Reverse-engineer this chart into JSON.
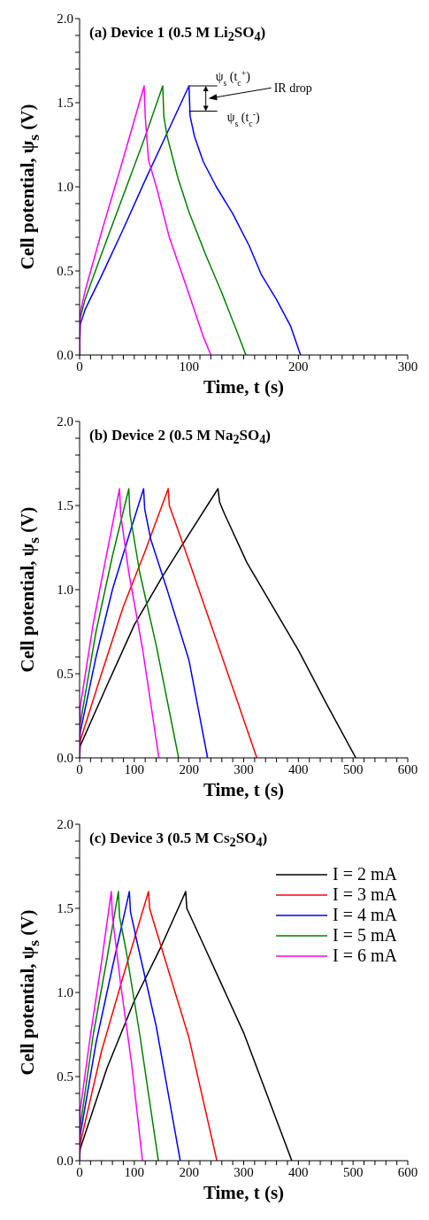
{
  "chart_data": [
    {
      "type": "line",
      "title": "(a) Device 1 (0.5 M Li$_{2}$SO$_{4}$)",
      "xlabel": "Time, t (s)",
      "ylabel": "Cell potential, ψ$_{s}$ (V)",
      "xlim": [
        0,
        300
      ],
      "xticks": [
        {
          "value": 0,
          "label": "0"
        },
        {
          "value": 10,
          "label": null
        },
        {
          "value": 20,
          "label": null
        },
        {
          "value": 30,
          "label": null
        },
        {
          "value": 40,
          "label": null
        },
        {
          "value": 50,
          "label": null
        },
        {
          "value": 60,
          "label": null
        },
        {
          "value": 70,
          "label": null
        },
        {
          "value": 80,
          "label": null
        },
        {
          "value": 90,
          "label": null
        },
        {
          "value": 100,
          "label": "100"
        },
        {
          "value": 110,
          "label": null
        },
        {
          "value": 120,
          "label": null
        },
        {
          "value": 130,
          "label": null
        },
        {
          "value": 140,
          "label": null
        },
        {
          "value": 150,
          "label": null
        },
        {
          "value": 160,
          "label": null
        },
        {
          "value": 170,
          "label": null
        },
        {
          "value": 180,
          "label": null
        },
        {
          "value": 190,
          "label": null
        },
        {
          "value": 200,
          "label": "200"
        },
        {
          "value": 210,
          "label": null
        },
        {
          "value": 220,
          "label": null
        },
        {
          "value": 230,
          "label": null
        },
        {
          "value": 240,
          "label": null
        },
        {
          "value": 250,
          "label": null
        },
        {
          "value": 260,
          "label": null
        },
        {
          "value": 270,
          "label": null
        },
        {
          "value": 280,
          "label": null
        },
        {
          "value": 290,
          "label": null
        },
        {
          "value": 300,
          "label": "300"
        }
      ],
      "ylim": [
        0,
        2
      ],
      "yticks": [
        {
          "value": 0,
          "label": "0.0"
        },
        {
          "value": 0.1,
          "label": null
        },
        {
          "value": 0.2,
          "label": null
        },
        {
          "value": 0.3,
          "label": null
        },
        {
          "value": 0.4,
          "label": null
        },
        {
          "value": 0.5,
          "label": "0.5"
        },
        {
          "value": 0.6,
          "label": null
        },
        {
          "value": 0.7,
          "label": null
        },
        {
          "value": 0.8,
          "label": null
        },
        {
          "value": 0.9,
          "label": null
        },
        {
          "value": 1,
          "label": "1.0"
        },
        {
          "value": 1.1,
          "label": null
        },
        {
          "value": 1.2,
          "label": null
        },
        {
          "value": 1.3,
          "label": null
        },
        {
          "value": 1.4,
          "label": null
        },
        {
          "value": 1.5,
          "label": "1.5"
        },
        {
          "value": 1.6,
          "label": null
        },
        {
          "value": 1.7,
          "label": null
        },
        {
          "value": 1.8,
          "label": null
        },
        {
          "value": 1.9,
          "label": null
        },
        {
          "value": 2,
          "label": "2.0"
        }
      ],
      "annotations": [
        {
          "text": "ψ$_{s}$ (t$_{c}$$^{+}$)",
          "x": 100,
          "y": 1.6
        },
        {
          "text": "ψ$_{s}$ (t$_{c}$$^{-}$)",
          "x": 100,
          "y": 1.45
        },
        "IR drop"
      ],
      "series": [
        {
          "color": "#0000ff",
          "x": [
            0,
            0.5,
            5,
            20,
            40,
            60,
            80,
            100,
            101,
            105,
            113,
            125,
            140,
            155,
            166,
            180,
            193,
            202
          ],
          "values": [
            0,
            0.18,
            0.27,
            0.47,
            0.75,
            1.04,
            1.32,
            1.6,
            1.42,
            1.3,
            1.15,
            1.0,
            0.84,
            0.65,
            0.48,
            0.33,
            0.17,
            0
          ]
        },
        {
          "color": "#008000",
          "x": [
            0,
            0.5,
            5,
            20,
            40,
            60,
            76,
            77,
            80,
            90,
            100,
            115,
            130,
            145,
            152
          ],
          "values": [
            0,
            0.22,
            0.33,
            0.6,
            0.95,
            1.3,
            1.6,
            1.42,
            1.3,
            1.05,
            0.85,
            0.6,
            0.37,
            0.12,
            0
          ]
        },
        {
          "color": "#ff00ff",
          "x": [
            0,
            0.5,
            5,
            20,
            40,
            59,
            60,
            63,
            71,
            82,
            98,
            113,
            120
          ],
          "values": [
            0,
            0.25,
            0.38,
            0.73,
            1.17,
            1.6,
            1.42,
            1.16,
            0.98,
            0.7,
            0.4,
            0.11,
            0
          ]
        }
      ]
    },
    {
      "type": "line",
      "title": "(b) Device 2 (0.5 M Na$_{2}$SO$_{4}$)",
      "xlabel": "Time, t (s)",
      "ylabel": "Cell potential, ψ$_{s}$ (V)",
      "xlim": [
        0,
        600
      ],
      "xticks": [
        {
          "value": 0,
          "label": "0"
        },
        {
          "value": 20,
          "label": null
        },
        {
          "value": 40,
          "label": null
        },
        {
          "value": 60,
          "label": null
        },
        {
          "value": 80,
          "label": null
        },
        {
          "value": 100,
          "label": "100"
        },
        {
          "value": 120,
          "label": null
        },
        {
          "value": 140,
          "label": null
        },
        {
          "value": 160,
          "label": null
        },
        {
          "value": 180,
          "label": null
        },
        {
          "value": 200,
          "label": "200"
        },
        {
          "value": 220,
          "label": null
        },
        {
          "value": 240,
          "label": null
        },
        {
          "value": 260,
          "label": null
        },
        {
          "value": 280,
          "label": null
        },
        {
          "value": 300,
          "label": "300"
        },
        {
          "value": 320,
          "label": null
        },
        {
          "value": 340,
          "label": null
        },
        {
          "value": 360,
          "label": null
        },
        {
          "value": 380,
          "label": null
        },
        {
          "value": 400,
          "label": "400"
        },
        {
          "value": 420,
          "label": null
        },
        {
          "value": 440,
          "label": null
        },
        {
          "value": 460,
          "label": null
        },
        {
          "value": 480,
          "label": null
        },
        {
          "value": 500,
          "label": "500"
        },
        {
          "value": 520,
          "label": null
        },
        {
          "value": 540,
          "label": null
        },
        {
          "value": 560,
          "label": null
        },
        {
          "value": 580,
          "label": null
        },
        {
          "value": 600,
          "label": "600"
        }
      ],
      "ylim": [
        0,
        2
      ],
      "yticks": [
        {
          "value": 0,
          "label": "0.0"
        },
        {
          "value": 0.1,
          "label": null
        },
        {
          "value": 0.2,
          "label": null
        },
        {
          "value": 0.3,
          "label": null
        },
        {
          "value": 0.4,
          "label": null
        },
        {
          "value": 0.5,
          "label": "0.5"
        },
        {
          "value": 0.6,
          "label": null
        },
        {
          "value": 0.7,
          "label": null
        },
        {
          "value": 0.8,
          "label": null
        },
        {
          "value": 0.9,
          "label": null
        },
        {
          "value": 1,
          "label": "1.0"
        },
        {
          "value": 1.1,
          "label": null
        },
        {
          "value": 1.2,
          "label": null
        },
        {
          "value": 1.3,
          "label": null
        },
        {
          "value": 1.4,
          "label": null
        },
        {
          "value": 1.5,
          "label": "1.5"
        },
        {
          "value": 1.6,
          "label": null
        },
        {
          "value": 1.7,
          "label": null
        },
        {
          "value": 1.8,
          "label": null
        },
        {
          "value": 1.9,
          "label": null
        },
        {
          "value": 2,
          "label": "2.0"
        }
      ],
      "series": [
        {
          "color": "#000000",
          "x": [
            0,
            1,
            50,
            100,
            150,
            200,
            253,
            256,
            265,
            306,
            400,
            450,
            505
          ],
          "values": [
            0,
            0.07,
            0.43,
            0.79,
            1.07,
            1.33,
            1.6,
            1.52,
            1.45,
            1.16,
            0.64,
            0.33,
            0
          ]
        },
        {
          "color": "#ff0000",
          "x": [
            0,
            1,
            40,
            80,
            120,
            162,
            164,
            175,
            200,
            250,
            324
          ],
          "values": [
            0,
            0.1,
            0.5,
            0.9,
            1.23,
            1.6,
            1.5,
            1.4,
            1.17,
            0.7,
            0
          ]
        },
        {
          "color": "#0000ff",
          "x": [
            0,
            1,
            30,
            60,
            90,
            117,
            119,
            130,
            160,
            200,
            234
          ],
          "values": [
            0,
            0.15,
            0.6,
            1.0,
            1.32,
            1.6,
            1.48,
            1.3,
            1.0,
            0.58,
            0
          ]
        },
        {
          "color": "#008000",
          "x": [
            0,
            1,
            30,
            60,
            90,
            92,
            110,
            140,
            181
          ],
          "values": [
            0,
            0.2,
            0.75,
            1.2,
            1.6,
            1.45,
            1.1,
            0.67,
            0
          ]
        },
        {
          "color": "#ff00ff",
          "x": [
            0,
            1,
            25,
            50,
            73,
            75,
            90,
            115,
            145
          ],
          "values": [
            0,
            0.3,
            0.8,
            1.22,
            1.6,
            1.45,
            1.1,
            0.65,
            0
          ]
        }
      ]
    },
    {
      "type": "line",
      "title": "(c) Device 3 (0.5 M Cs$_{2}$SO$_{4}$)",
      "xlabel": "Time, t (s)",
      "ylabel": "Cell potential, ψ$_{s}$ (V)",
      "legend": "top right",
      "xlim": [
        0,
        600
      ],
      "xticks": [
        {
          "value": 0,
          "label": "0"
        },
        {
          "value": 20,
          "label": null
        },
        {
          "value": 40,
          "label": null
        },
        {
          "value": 60,
          "label": null
        },
        {
          "value": 80,
          "label": null
        },
        {
          "value": 100,
          "label": "100"
        },
        {
          "value": 120,
          "label": null
        },
        {
          "value": 140,
          "label": null
        },
        {
          "value": 160,
          "label": null
        },
        {
          "value": 180,
          "label": null
        },
        {
          "value": 200,
          "label": "200"
        },
        {
          "value": 220,
          "label": null
        },
        {
          "value": 240,
          "label": null
        },
        {
          "value": 260,
          "label": null
        },
        {
          "value": 280,
          "label": null
        },
        {
          "value": 300,
          "label": "300"
        },
        {
          "value": 320,
          "label": null
        },
        {
          "value": 340,
          "label": null
        },
        {
          "value": 360,
          "label": null
        },
        {
          "value": 380,
          "label": null
        },
        {
          "value": 400,
          "label": "400"
        },
        {
          "value": 420,
          "label": null
        },
        {
          "value": 440,
          "label": null
        },
        {
          "value": 460,
          "label": null
        },
        {
          "value": 480,
          "label": null
        },
        {
          "value": 500,
          "label": "500"
        },
        {
          "value": 520,
          "label": null
        },
        {
          "value": 540,
          "label": null
        },
        {
          "value": 560,
          "label": null
        },
        {
          "value": 580,
          "label": null
        },
        {
          "value": 600,
          "label": "600"
        }
      ],
      "ylim": [
        0,
        2
      ],
      "yticks": [
        {
          "value": 0,
          "label": "0.0"
        },
        {
          "value": 0.1,
          "label": null
        },
        {
          "value": 0.2,
          "label": null
        },
        {
          "value": 0.3,
          "label": null
        },
        {
          "value": 0.4,
          "label": null
        },
        {
          "value": 0.5,
          "label": "0.5"
        },
        {
          "value": 0.6,
          "label": null
        },
        {
          "value": 0.7,
          "label": null
        },
        {
          "value": 0.8,
          "label": null
        },
        {
          "value": 0.9,
          "label": null
        },
        {
          "value": 1,
          "label": "1.0"
        },
        {
          "value": 1.1,
          "label": null
        },
        {
          "value": 1.2,
          "label": null
        },
        {
          "value": 1.3,
          "label": null
        },
        {
          "value": 1.4,
          "label": null
        },
        {
          "value": 1.5,
          "label": "1.5"
        },
        {
          "value": 1.6,
          "label": null
        },
        {
          "value": 1.7,
          "label": null
        },
        {
          "value": 1.8,
          "label": null
        },
        {
          "value": 1.9,
          "label": null
        },
        {
          "value": 2,
          "label": "2.0"
        }
      ],
      "series": [
        {
          "name": "I = 2 mA",
          "color": "#000000",
          "x": [
            0,
            1,
            50,
            100,
            150,
            194,
            196,
            227,
            300,
            388
          ],
          "values": [
            0,
            0.07,
            0.55,
            0.95,
            1.28,
            1.6,
            1.5,
            1.28,
            0.76,
            0
          ]
        },
        {
          "name": "I = 3 mA",
          "color": "#ff0000",
          "x": [
            0,
            1,
            40,
            80,
            126,
            128,
            140,
            200,
            251
          ],
          "values": [
            0,
            0.1,
            0.65,
            1.1,
            1.6,
            1.5,
            1.37,
            0.73,
            0
          ]
        },
        {
          "name": "I = 4 mA",
          "color": "#0000ff",
          "x": [
            0,
            1,
            30,
            60,
            91,
            93,
            105,
            140,
            184
          ],
          "values": [
            0,
            0.15,
            0.7,
            1.15,
            1.6,
            1.48,
            1.3,
            0.8,
            0
          ]
        },
        {
          "name": "I = 5 mA",
          "color": "#008000",
          "x": [
            0,
            1,
            25,
            50,
            71,
            73,
            85,
            110,
            144
          ],
          "values": [
            0,
            0.2,
            0.75,
            1.2,
            1.6,
            1.45,
            1.25,
            0.75,
            0
          ]
        },
        {
          "name": "I = 6 mA",
          "color": "#ff00ff",
          "x": [
            0,
            1,
            20,
            40,
            58,
            60,
            75,
            95,
            115
          ],
          "values": [
            0,
            0.3,
            0.75,
            1.18,
            1.6,
            1.45,
            1.05,
            0.58,
            0
          ]
        }
      ]
    }
  ]
}
